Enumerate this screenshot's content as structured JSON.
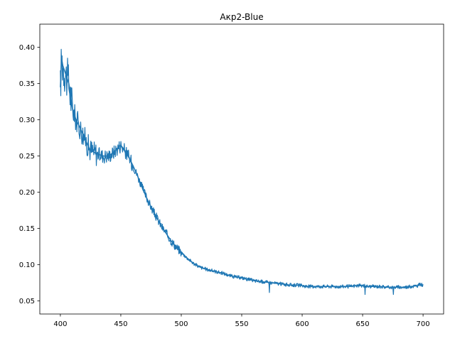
{
  "chart_data": {
    "type": "line",
    "title": "Aкp2-Blue",
    "xlabel": "",
    "ylabel": "",
    "xlim": [
      383,
      717
    ],
    "ylim": [
      0.032,
      0.432
    ],
    "xticks": [
      400,
      450,
      500,
      550,
      600,
      650,
      700
    ],
    "xtick_labels": [
      "400",
      "450",
      "500",
      "550",
      "600",
      "650",
      "700"
    ],
    "yticks": [
      0.05,
      0.1,
      0.15,
      0.2,
      0.25,
      0.3,
      0.35,
      0.4
    ],
    "ytick_labels": [
      "0.05",
      "0.10",
      "0.15",
      "0.20",
      "0.25",
      "0.30",
      "0.35",
      "0.40"
    ],
    "grid": false,
    "series": [
      {
        "color": "#1f77b4",
        "x": [
          400,
          401,
          402,
          403,
          405,
          407,
          410,
          413,
          416,
          420,
          424,
          428,
          432,
          436,
          440,
          444,
          448,
          450,
          453,
          456,
          460,
          464,
          468,
          472,
          476,
          480,
          484,
          488,
          492,
          496,
          500,
          505,
          510,
          515,
          520,
          525,
          530,
          535,
          540,
          545,
          550,
          555,
          560,
          565,
          570,
          575,
          580,
          585,
          590,
          595,
          600,
          605,
          610,
          615,
          620,
          625,
          630,
          635,
          640,
          645,
          650,
          655,
          660,
          665,
          670,
          675,
          680,
          685,
          690,
          695,
          698,
          700
        ],
        "y": [
          0.345,
          0.385,
          0.375,
          0.37,
          0.36,
          0.35,
          0.315,
          0.3,
          0.29,
          0.275,
          0.26,
          0.255,
          0.252,
          0.25,
          0.25,
          0.255,
          0.262,
          0.265,
          0.258,
          0.25,
          0.237,
          0.222,
          0.205,
          0.19,
          0.176,
          0.164,
          0.152,
          0.142,
          0.132,
          0.124,
          0.117,
          0.109,
          0.102,
          0.097,
          0.094,
          0.092,
          0.09,
          0.088,
          0.085,
          0.083,
          0.082,
          0.08,
          0.078,
          0.077,
          0.076,
          0.075,
          0.074,
          0.073,
          0.072,
          0.072,
          0.071,
          0.07,
          0.07,
          0.07,
          0.07,
          0.07,
          0.07,
          0.07,
          0.07,
          0.071,
          0.071,
          0.07,
          0.07,
          0.07,
          0.069,
          0.069,
          0.069,
          0.069,
          0.07,
          0.071,
          0.073,
          0.072
        ]
      }
    ]
  }
}
